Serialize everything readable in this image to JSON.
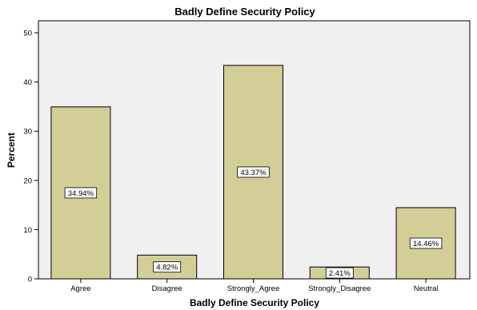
{
  "chart_data": {
    "type": "bar",
    "title": "Badly Define Security Policy",
    "xlabel": "Badly Define Security Policy",
    "ylabel": "Percent",
    "categories": [
      "Agree",
      "Disagree",
      "Strongly_Agree",
      "Strongly_Disagree",
      "Neutral"
    ],
    "values": [
      34.94,
      4.82,
      43.37,
      2.41,
      14.46
    ],
    "data_labels": [
      "34.94%",
      "4.82%",
      "43.37%",
      "2.41%",
      "14.46%"
    ],
    "ylim": [
      0,
      50
    ],
    "yticks": [
      0,
      10,
      20,
      30,
      40,
      50
    ],
    "grid": false,
    "legend": "none",
    "colors": {
      "bar_fill": "#d3ce98",
      "bar_stroke": "#000000",
      "plot_background": "#f0f0f0",
      "label_box": "#ffffff"
    }
  }
}
